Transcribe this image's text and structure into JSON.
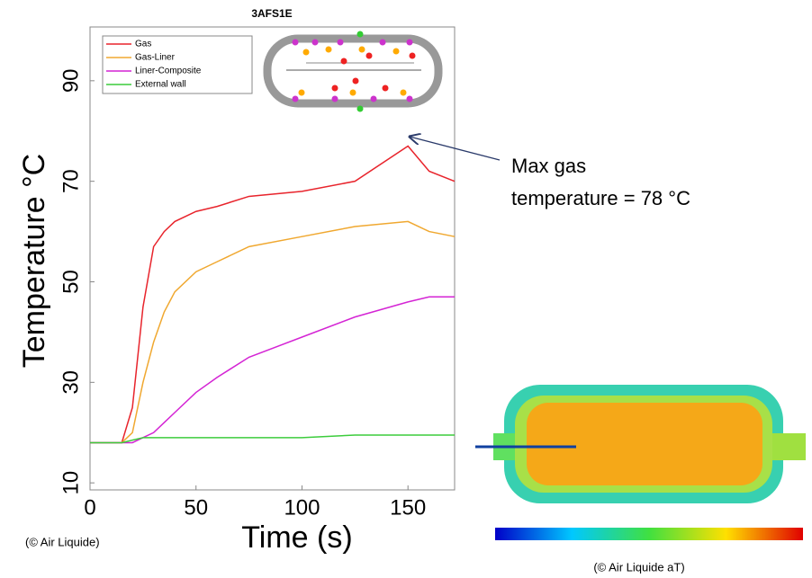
{
  "chart_data": {
    "type": "line",
    "title": "3AFS1E",
    "x_label": "Time (s)",
    "y_label": "Temperature °C",
    "x": [
      0,
      10,
      15,
      20,
      25,
      30,
      35,
      40,
      50,
      60,
      75,
      100,
      125,
      150,
      160,
      172
    ],
    "series": [
      {
        "name": "Gas",
        "color": "#e8242c",
        "values": [
          18,
          18,
          18,
          25,
          45,
          57,
          60,
          62,
          64,
          65,
          67,
          68,
          70,
          77,
          72,
          70
        ]
      },
      {
        "name": "Gas-Liner",
        "color": "#f0a830",
        "values": [
          18,
          18,
          18,
          20,
          30,
          38,
          44,
          48,
          52,
          54,
          57,
          59,
          61,
          62,
          60,
          59
        ]
      },
      {
        "name": "Liner-Composite",
        "color": "#d424d4",
        "values": [
          18,
          18,
          18,
          18,
          19,
          20,
          22,
          24,
          28,
          31,
          35,
          39,
          43,
          46,
          47,
          47
        ]
      },
      {
        "name": "External wall",
        "color": "#3ccc3c",
        "values": [
          18,
          18,
          18,
          18.5,
          19,
          19,
          19,
          19,
          19,
          19,
          19,
          19,
          19.5,
          19.5,
          19.5,
          19.5
        ]
      }
    ],
    "xlim": [
      0,
      172
    ],
    "ylim": [
      8.6,
      100.7
    ],
    "xticks": [
      0,
      50,
      100,
      150
    ],
    "yticks": [
      10,
      30,
      50,
      70,
      90
    ],
    "grid": false,
    "legend": "upper left",
    "annotations": [
      "Max gas",
      "temperature  = 78 °C"
    ],
    "credits": [
      "(© Air Liquide)",
      "(© Air Liquide aT)"
    ]
  }
}
